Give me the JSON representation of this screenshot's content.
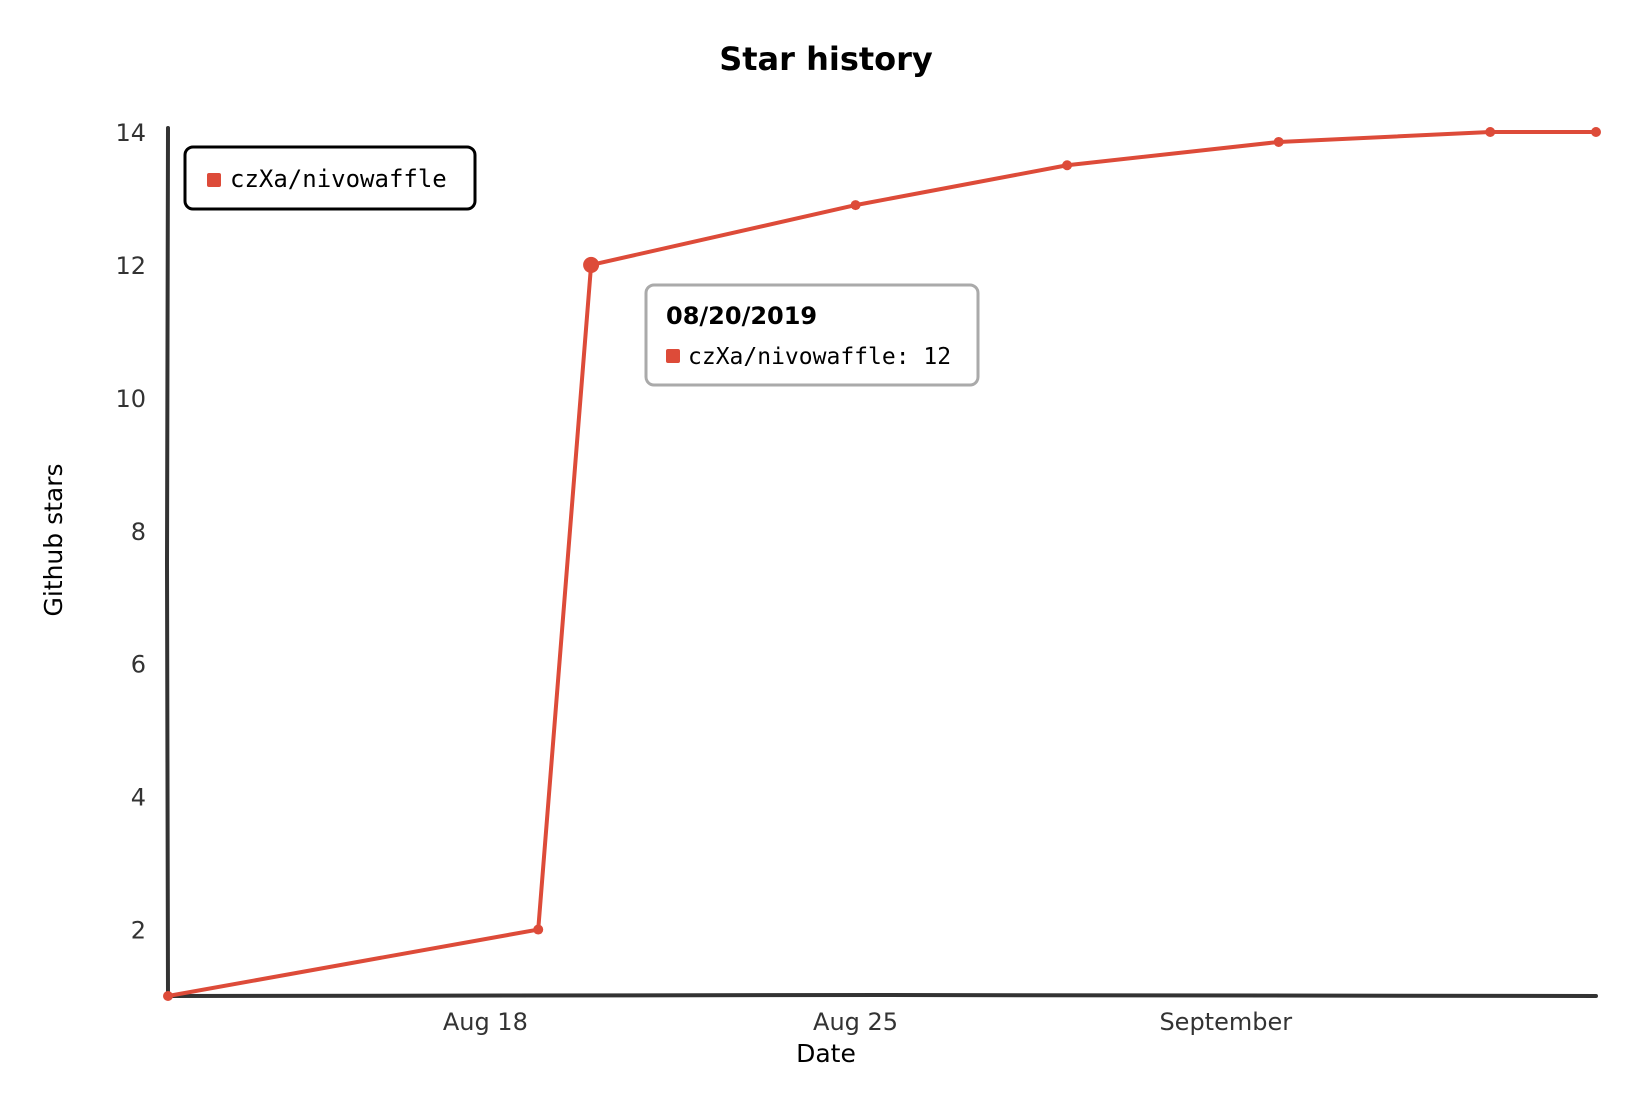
{
  "chart_data": {
    "type": "line",
    "title": "Star history",
    "xlabel": "Date",
    "ylabel": "Github stars",
    "x_ticks": [
      {
        "date": "2019-08-18",
        "label": "Aug 18"
      },
      {
        "date": "2019-08-25",
        "label": "Aug 25"
      },
      {
        "date": "2019-09-01",
        "label": "September"
      }
    ],
    "y_ticks": [
      2,
      4,
      6,
      8,
      10,
      12,
      14
    ],
    "xlim": [
      "2019-08-12",
      "2019-09-08"
    ],
    "ylim": [
      1,
      14
    ],
    "grid": false,
    "legend_position": "top-left",
    "series": [
      {
        "name": "czXa/nivowaffle",
        "color": "#dd4b39",
        "points": [
          {
            "x": "2019-08-12",
            "y": 1
          },
          {
            "x": "2019-08-19",
            "y": 2
          },
          {
            "x": "2019-08-20",
            "y": 12
          },
          {
            "x": "2019-08-25",
            "y": 12.9
          },
          {
            "x": "2019-08-29",
            "y": 13.5
          },
          {
            "x": "2019-09-02",
            "y": 13.85
          },
          {
            "x": "2019-09-06",
            "y": 14
          },
          {
            "x": "2019-09-08",
            "y": 14
          }
        ]
      }
    ],
    "tooltip": {
      "date": "08/20/2019",
      "label": "czXa/nivowaffle: 12",
      "x": "2019-08-20",
      "y": 12
    }
  }
}
